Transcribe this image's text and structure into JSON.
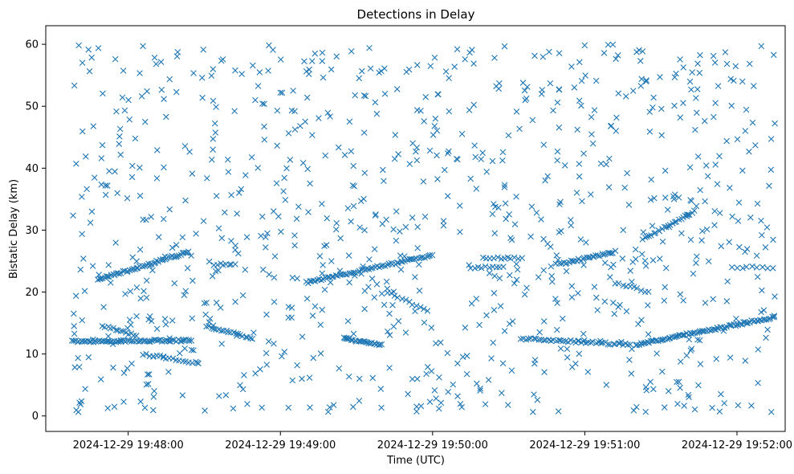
{
  "chart_data": {
    "type": "scatter",
    "title": "Detections in Delay",
    "xlabel": "Time (UTC)",
    "ylabel": "Bistatic Delay (km)",
    "marker": "x",
    "marker_color": "#1f77b4",
    "grid": false,
    "legend": "none",
    "x_unit": "seconds after 2024-12-29 19:47:00 UTC",
    "xlim": [
      27.5,
      319
    ],
    "ylim": [
      -2.5,
      63
    ],
    "x_ticks": [
      {
        "value": 60,
        "label": "2024-12-29 19:48:00"
      },
      {
        "value": 120,
        "label": "2024-12-29 19:49:00"
      },
      {
        "value": 180,
        "label": "2024-12-29 19:50:00"
      },
      {
        "value": 240,
        "label": "2024-12-29 19:51:00"
      },
      {
        "value": 300,
        "label": "2024-12-29 19:52:00"
      }
    ],
    "y_ticks": [
      {
        "value": 0,
        "label": "0"
      },
      {
        "value": 10,
        "label": "10"
      },
      {
        "value": 20,
        "label": "20"
      },
      {
        "value": 30,
        "label": "30"
      },
      {
        "value": 40,
        "label": "40"
      },
      {
        "value": 50,
        "label": "50"
      },
      {
        "value": 60,
        "label": "60"
      }
    ],
    "clutter": {
      "description": "random false-alarm detections spread over the whole plot",
      "x_range": [
        38,
        315
      ],
      "y_range": [
        0.5,
        60
      ],
      "count": 900
    },
    "tracks": [
      {
        "x": [
          38,
          85
        ],
        "y": [
          12.0,
          12.2
        ],
        "count": 70
      },
      {
        "x": [
          48,
          84
        ],
        "y": [
          22.0,
          26.5
        ],
        "count": 55
      },
      {
        "x": [
          50,
          63
        ],
        "y": [
          14.5,
          13.0
        ],
        "count": 14
      },
      {
        "x": [
          66,
          88
        ],
        "y": [
          10.0,
          8.5
        ],
        "count": 18
      },
      {
        "x": [
          91,
          109
        ],
        "y": [
          14.5,
          12.5
        ],
        "count": 20
      },
      {
        "x": [
          94,
          102
        ],
        "y": [
          24.5,
          24.5
        ],
        "count": 8
      },
      {
        "x": [
          130,
          180
        ],
        "y": [
          21.5,
          26.0
        ],
        "count": 65
      },
      {
        "x": [
          145,
          160
        ],
        "y": [
          12.5,
          11.5
        ],
        "count": 25
      },
      {
        "x": [
          162,
          178
        ],
        "y": [
          20.0,
          17.0
        ],
        "count": 12
      },
      {
        "x": [
          195,
          208
        ],
        "y": [
          24.0,
          24.0
        ],
        "count": 10
      },
      {
        "x": [
          200,
          215
        ],
        "y": [
          25.5,
          25.5
        ],
        "count": 12
      },
      {
        "x": [
          215,
          258
        ],
        "y": [
          12.5,
          11.5
        ],
        "count": 45
      },
      {
        "x": [
          230,
          252
        ],
        "y": [
          24.5,
          26.5
        ],
        "count": 30
      },
      {
        "x": [
          252,
          265
        ],
        "y": [
          21.5,
          20.0
        ],
        "count": 10
      },
      {
        "x": [
          260,
          315
        ],
        "y": [
          11.5,
          16.0
        ],
        "count": 85
      },
      {
        "x": [
          263,
          283
        ],
        "y": [
          28.5,
          33.0
        ],
        "count": 25
      },
      {
        "x": [
          300,
          314
        ],
        "y": [
          24.0,
          24.0
        ],
        "count": 8
      }
    ]
  }
}
